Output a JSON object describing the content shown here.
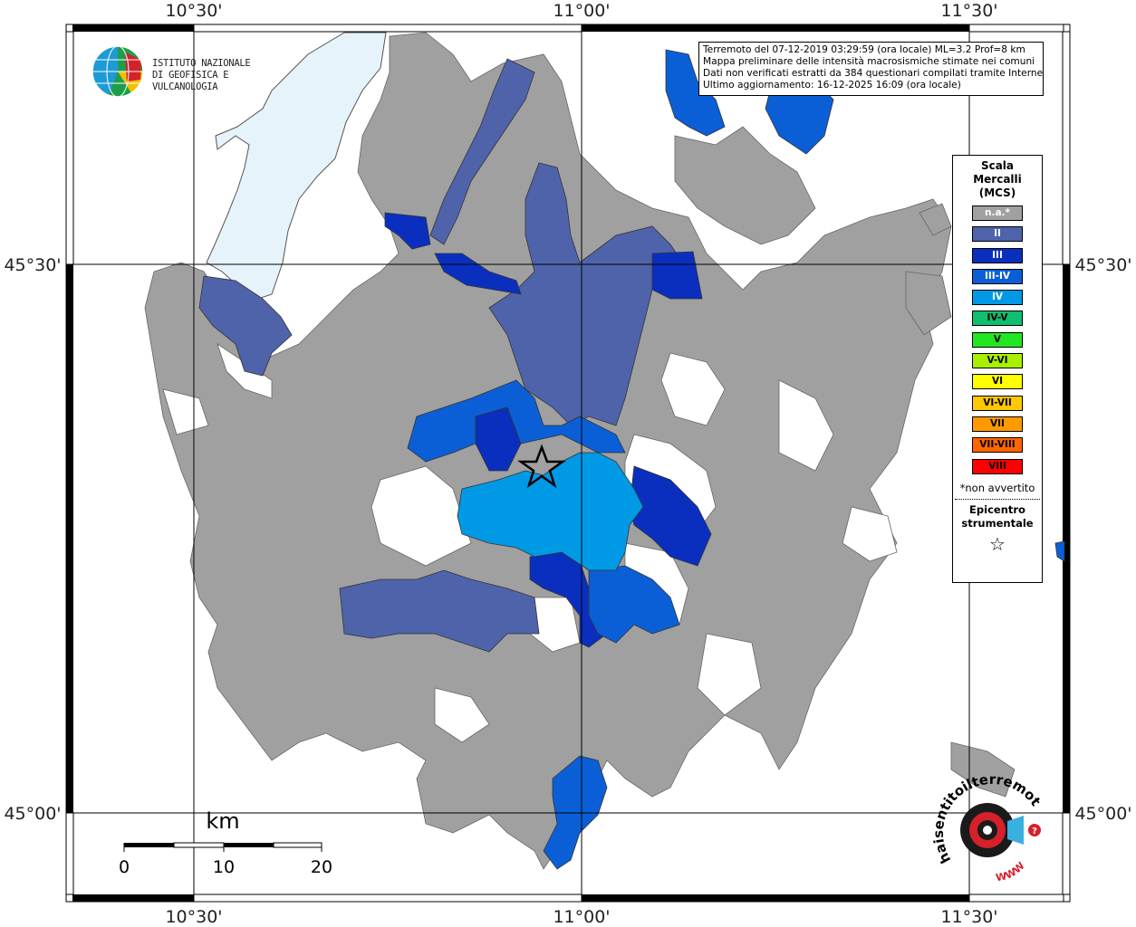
{
  "header": {
    "institute_line1": "ISTITUTO NAZIONALE",
    "institute_line2": "DI GEOFISICA E VULCANOLOGIA",
    "info_lines": [
      "Terremoto del 07-12-2019 03:29:59 (ora locale) ML=3.2 Prof=8 km",
      "Mappa preliminare delle intensità macrosismiche stimate nei comuni",
      "Dati non verificati estratti da 384 questionari compilati tramite Internet.",
      "Ultimo aggiornamento: 16-12-2025 16:09 (ora locale)"
    ]
  },
  "map": {
    "lon_labels": [
      "10°30'",
      "11°00'",
      "11°30'"
    ],
    "lat_labels": [
      "45°30'",
      "45°00'"
    ],
    "epicenter_symbol": "star-icon"
  },
  "scale_bar": {
    "unit": "km",
    "ticks": [
      "0",
      "10",
      "20"
    ]
  },
  "legend": {
    "title_lines": [
      "Scala",
      "Mercalli",
      "(MCS)"
    ],
    "items": [
      {
        "label": "n.a.*",
        "color": "#a0a0a0",
        "text_color": "#ffffff"
      },
      {
        "label": "II",
        "color": "#4f63ab",
        "text_color": "#ffffff"
      },
      {
        "label": "III",
        "color": "#0a2fbf",
        "text_color": "#ffffff"
      },
      {
        "label": "III-IV",
        "color": "#0b5fd6",
        "text_color": "#ffffff"
      },
      {
        "label": "IV",
        "color": "#0099e6",
        "text_color": "#ffffff"
      },
      {
        "label": "IV-V",
        "color": "#0fbf6f",
        "text_color": "#000000"
      },
      {
        "label": "V",
        "color": "#22e622",
        "text_color": "#000000"
      },
      {
        "label": "V-VI",
        "color": "#a8f000",
        "text_color": "#000000"
      },
      {
        "label": "VI",
        "color": "#ffff00",
        "text_color": "#000000"
      },
      {
        "label": "VI-VII",
        "color": "#ffc800",
        "text_color": "#000000"
      },
      {
        "label": "VII",
        "color": "#ff9900",
        "text_color": "#000000"
      },
      {
        "label": "VII-VIII",
        "color": "#ff6600",
        "text_color": "#000000"
      },
      {
        "label": "VIII",
        "color": "#ff0000",
        "text_color": "#000000"
      }
    ],
    "footnote": "*non avvertito",
    "epicenter_lines": [
      "Epicentro",
      "strumentale"
    ],
    "epicenter_glyph": "☆"
  },
  "colors": {
    "na": "#a0a0a0",
    "lake": "#e6f3fb"
  },
  "logo_hai": {
    "brand_text": "haisentitoilterremoto.it",
    "url_text": "WWW"
  }
}
